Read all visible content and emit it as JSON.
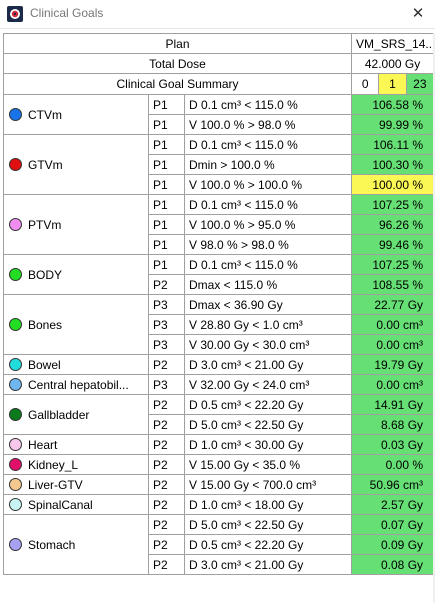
{
  "window": {
    "title": "Clinical Goals"
  },
  "colors": {
    "met": "#66e075",
    "warning": "#fbf754",
    "failed": "#ffffff"
  },
  "header": {
    "plan_label": "Plan",
    "plan_value": "VM_SRS_14...",
    "total_dose_label": "Total Dose",
    "total_dose_value": "42.000 Gy",
    "summary_label": "Clinical Goal Summary",
    "summary_counts": [
      {
        "value": "0",
        "color": "#ffffff"
      },
      {
        "value": "1",
        "color": "#fbf754"
      },
      {
        "value": "23",
        "color": "#66e075"
      }
    ]
  },
  "structures": [
    {
      "name": "CTVm",
      "color": "#1a73e8",
      "goals": [
        {
          "priority": "P1",
          "goal": "D 0.1 cm³ < 115.0 %",
          "value": "106.58 %",
          "status": "met"
        },
        {
          "priority": "P1",
          "goal": "V 100.0 % > 98.0 %",
          "value": "99.99 %",
          "status": "met"
        }
      ]
    },
    {
      "name": "GTVm",
      "color": "#e01010",
      "goals": [
        {
          "priority": "P1",
          "goal": "D 0.1 cm³ < 115.0 %",
          "value": "106.11 %",
          "status": "met"
        },
        {
          "priority": "P1",
          "goal": "Dmin > 100.0 %",
          "value": "100.30 %",
          "status": "met"
        },
        {
          "priority": "P1",
          "goal": "V 100.0 % > 100.0 %",
          "value": "100.00 %",
          "status": "warning"
        }
      ]
    },
    {
      "name": "PTVm",
      "color": "#f08ef0",
      "goals": [
        {
          "priority": "P1",
          "goal": "D 0.1 cm³ < 115.0 %",
          "value": "107.25 %",
          "status": "met"
        },
        {
          "priority": "P1",
          "goal": "V 100.0 % > 95.0 %",
          "value": "96.26 %",
          "status": "met"
        },
        {
          "priority": "P1",
          "goal": "V 98.0 % > 98.0 %",
          "value": "99.46 %",
          "status": "met"
        }
      ]
    },
    {
      "name": "BODY",
      "color": "#22dd22",
      "goals": [
        {
          "priority": "P1",
          "goal": "D 0.1 cm³ < 115.0 %",
          "value": "107.25 %",
          "status": "met"
        },
        {
          "priority": "P2",
          "goal": "Dmax < 115.0 %",
          "value": "108.55 %",
          "status": "met"
        }
      ]
    },
    {
      "name": "Bones",
      "color": "#22dd22",
      "goals": [
        {
          "priority": "P3",
          "goal": "Dmax < 36.90 Gy",
          "value": "22.77 Gy",
          "status": "met"
        },
        {
          "priority": "P3",
          "goal": "V 28.80 Gy < 1.0 cm³",
          "value": "0.00 cm³",
          "status": "met"
        },
        {
          "priority": "P3",
          "goal": "V 30.00 Gy < 30.0 cm³",
          "value": "0.00 cm³",
          "status": "met"
        }
      ]
    },
    {
      "name": "Bowel",
      "color": "#22dcdc",
      "goals": [
        {
          "priority": "P2",
          "goal": "D 3.0 cm³ < 21.00 Gy",
          "value": "19.79 Gy",
          "status": "met"
        }
      ]
    },
    {
      "name": "Central hepatobil...",
      "color": "#6fb6ee",
      "goals": [
        {
          "priority": "P3",
          "goal": "V 32.00 Gy < 24.0 cm³",
          "value": "0.00 cm³",
          "status": "met"
        }
      ]
    },
    {
      "name": "Gallbladder",
      "color": "#0a7a1a",
      "goals": [
        {
          "priority": "P2",
          "goal": "D 0.5 cm³ < 22.20 Gy",
          "value": "14.91 Gy",
          "status": "met"
        },
        {
          "priority": "P2",
          "goal": "D 5.0 cm³ < 22.50 Gy",
          "value": "8.68 Gy",
          "status": "met"
        }
      ]
    },
    {
      "name": "Heart",
      "color": "#f8c8ec",
      "goals": [
        {
          "priority": "P2",
          "goal": "D 1.0 cm³ < 30.00 Gy",
          "value": "0.03 Gy",
          "status": "met"
        }
      ]
    },
    {
      "name": "Kidney_L",
      "color": "#e0106a",
      "goals": [
        {
          "priority": "P2",
          "goal": "V 15.00 Gy < 35.0 %",
          "value": "0.00 %",
          "status": "met"
        }
      ]
    },
    {
      "name": "Liver-GTV",
      "color": "#f5c890",
      "goals": [
        {
          "priority": "P2",
          "goal": "V 15.00 Gy < 700.0 cm³",
          "value": "50.96 cm³",
          "status": "met"
        }
      ]
    },
    {
      "name": "SpinalCanal",
      "color": "#c8f4f4",
      "goals": [
        {
          "priority": "P2",
          "goal": "D 1.0 cm³ < 18.00 Gy",
          "value": "2.57 Gy",
          "status": "met"
        }
      ]
    },
    {
      "name": "Stomach",
      "color": "#a8a0f0",
      "goals": [
        {
          "priority": "P2",
          "goal": "D 5.0 cm³ < 22.50 Gy",
          "value": "0.07 Gy",
          "status": "met"
        },
        {
          "priority": "P2",
          "goal": "D 0.5 cm³ < 22.20 Gy",
          "value": "0.09 Gy",
          "status": "met"
        },
        {
          "priority": "P2",
          "goal": "D 3.0 cm³ < 21.00 Gy",
          "value": "0.08 Gy",
          "status": "met"
        }
      ]
    }
  ]
}
